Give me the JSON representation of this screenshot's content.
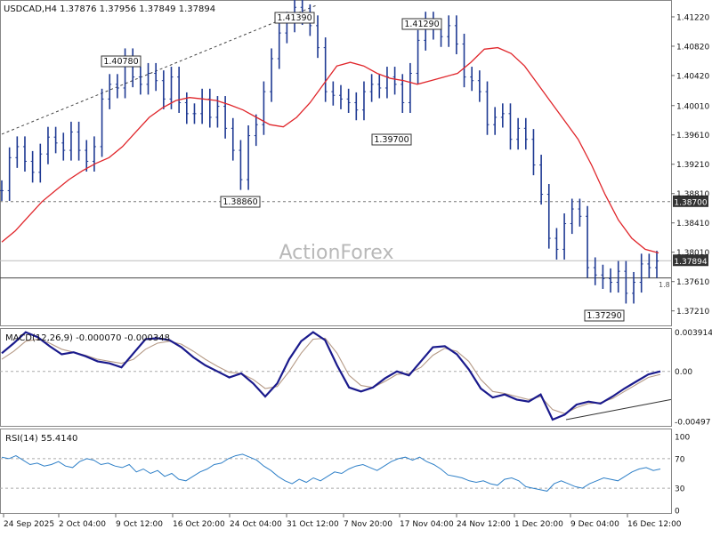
{
  "colors": {
    "background": "#ffffff",
    "bars": "#1f3a93",
    "sma": "#e0262b",
    "macd_main": "#1a1a8c",
    "macd_signal": "#b59a86",
    "rsi": "#2f80c8",
    "text": "#111111",
    "grid_dash": "#777777",
    "frame": "#888888",
    "watermark": "#b8b8b8",
    "price_tag_bg": "#333333",
    "price_tag_text": "#ffffff"
  },
  "main": {
    "header": "USDCAD,H4  1.37876 1.37956 1.37849 1.37894",
    "watermark": "ActionForex",
    "current_price": "1.37894",
    "resistance_label": "1.38700",
    "small_label": "1.8"
  },
  "macd": {
    "header": "MACD(12,26,9) -0.000070 -0.000348"
  },
  "rsi": {
    "header": "RSI(14) 55.4140"
  },
  "chart_data": [
    {
      "type": "line",
      "panel": "price",
      "title": "USDCAD,H4 1.37876 1.37956 1.37849 1.37894",
      "ylim": [
        1.37,
        1.4145
      ],
      "y_ticks": [
        "1.41220",
        "1.40820",
        "1.40420",
        "1.40010",
        "1.39610",
        "1.39210",
        "1.38810",
        "1.38410",
        "1.38010",
        "1.37610",
        "1.37210"
      ],
      "x_ticks": [
        "24 Sep 2025",
        "2 Oct 04:00",
        "9 Oct 12:00",
        "16 Oct 20:00",
        "24 Oct 04:00",
        "31 Oct 12:00",
        "7 Nov 20:00",
        "17 Nov 04:00",
        "24 Nov 12:00",
        "1 Dec 20:00",
        "9 Dec 04:00",
        "16 Dec 12:00"
      ],
      "series": [
        {
          "values": [
            1.3885,
            1.393,
            1.3945,
            1.3925,
            1.391,
            1.3935,
            1.3958,
            1.395,
            1.394,
            1.3965,
            1.394,
            1.3925,
            1.3945,
            1.401,
            1.403,
            1.4025,
            1.4065,
            1.404,
            1.403,
            1.4045,
            1.4035,
            1.401,
            1.404,
            1.4005,
            1.399,
            1.399,
            1.401,
            1.3985,
            1.4,
            1.397,
            1.394,
            1.39,
            1.396,
            1.3975,
            1.402,
            1.4065,
            1.41,
            1.4115,
            1.4135,
            1.4125,
            1.411,
            1.408,
            1.402,
            1.4015,
            1.401,
            1.4005,
            1.3995,
            1.402,
            1.403,
            1.4025,
            1.404,
            1.403,
            1.4005,
            1.4045,
            1.409,
            1.4115,
            1.4105,
            1.4095,
            1.411,
            1.4085,
            1.404,
            1.4035,
            1.402,
            1.3975,
            1.3985,
            1.399,
            1.3955,
            1.397,
            1.3955,
            1.392,
            1.388,
            1.382,
            1.3805,
            1.384,
            1.386,
            1.385,
            1.378,
            1.377,
            1.3765,
            1.376,
            1.3775,
            1.3745,
            1.376,
            1.3785,
            1.378,
            1.3789
          ]
        },
        {
          "name": "MA",
          "values": [
            1.3815,
            1.383,
            1.385,
            1.387,
            1.3885,
            1.39,
            1.3912,
            1.3922,
            1.393,
            1.3945,
            1.3965,
            1.3985,
            1.3998,
            1.4008,
            1.4012,
            1.401,
            1.4008,
            1.4002,
            1.3995,
            1.3985,
            1.3975,
            1.3972,
            1.3985,
            1.4005,
            1.403,
            1.4055,
            1.406,
            1.4055,
            1.4045,
            1.4038,
            1.4035,
            1.403,
            1.4035,
            1.404,
            1.4045,
            1.406,
            1.4078,
            1.408,
            1.4072,
            1.4055,
            1.403,
            1.4005,
            1.398,
            1.3955,
            1.392,
            1.388,
            1.3845,
            1.382,
            1.3805,
            1.38
          ]
        },
        {
          "name": "trendline",
          "values": [
            1.3962,
            1.4138
          ]
        }
      ],
      "annotations": [
        {
          "label": "1.41390",
          "value": 1.4139
        },
        {
          "label": "1.40780",
          "value": 1.4078
        },
        {
          "label": "1.41290",
          "value": 1.4129
        },
        {
          "label": "1.39700",
          "value": 1.397
        },
        {
          "label": "1.38860",
          "value": 1.3886
        },
        {
          "label": "1.37290",
          "value": 1.3729
        },
        {
          "label": "1.38700",
          "value": 1.387
        },
        {
          "label": "1.37894",
          "value": 1.37894
        }
      ]
    },
    {
      "type": "line",
      "panel": "macd",
      "title": "MACD(12,26,9) -0.000070 -0.000348",
      "ylim": [
        -0.00515,
        0.00395
      ],
      "y_ticks": [
        "0.003914",
        "0.00",
        "-0.00497"
      ],
      "series": [
        {
          "name": "MACD main",
          "values": [
            0.0018,
            0.0028,
            0.0039,
            0.0034,
            0.0025,
            0.0017,
            0.0019,
            0.0015,
            0.001,
            0.0008,
            0.0004,
            0.0018,
            0.0032,
            0.0033,
            0.0031,
            0.0024,
            0.0014,
            0.0006,
            0.0,
            -0.0006,
            -0.0002,
            -0.0012,
            -0.0025,
            -0.0012,
            0.0012,
            0.003,
            0.0039,
            0.0031,
            0.0006,
            -0.0016,
            -0.002,
            -0.0016,
            -0.0007,
            0.0,
            -0.0004,
            0.001,
            0.0024,
            0.0025,
            0.0017,
            0.0002,
            -0.0017,
            -0.0026,
            -0.0023,
            -0.0028,
            -0.003,
            -0.0023,
            -0.0048,
            -0.0043,
            -0.0033,
            -0.003,
            -0.0032,
            -0.0025,
            -0.0017,
            -0.001,
            -0.0003,
            0.0
          ]
        },
        {
          "name": "MACD signal",
          "values": [
            0.0012,
            0.002,
            0.003,
            0.0032,
            0.0028,
            0.0022,
            0.0019,
            0.0016,
            0.0012,
            0.001,
            0.0008,
            0.0012,
            0.0022,
            0.0028,
            0.003,
            0.0027,
            0.002,
            0.0012,
            0.0005,
            -0.0001,
            -0.0002,
            -0.0008,
            -0.0017,
            -0.0015,
            0.0,
            0.0018,
            0.0032,
            0.0033,
            0.0018,
            -0.0004,
            -0.0014,
            -0.0016,
            -0.001,
            -0.0003,
            -0.0002,
            0.0004,
            0.0016,
            0.0023,
            0.002,
            0.001,
            -0.0008,
            -0.002,
            -0.0022,
            -0.0025,
            -0.0028,
            -0.0025,
            -0.0038,
            -0.0042,
            -0.0036,
            -0.0032,
            -0.0031,
            -0.0027,
            -0.002,
            -0.0013,
            -0.0006,
            -0.0003
          ]
        },
        {
          "name": "trendline",
          "values": [
            -0.0048,
            -0.0028
          ]
        }
      ]
    },
    {
      "type": "line",
      "panel": "rsi",
      "title": "RSI(14) 55.4140",
      "ylim": [
        0,
        100
      ],
      "y_ticks": [
        "100",
        "70",
        "30",
        "0"
      ],
      "series": [
        {
          "name": "RSI",
          "values": [
            72,
            70,
            74,
            68,
            62,
            64,
            60,
            62,
            66,
            60,
            58,
            66,
            70,
            68,
            62,
            64,
            60,
            58,
            62,
            52,
            56,
            50,
            54,
            46,
            50,
            42,
            40,
            46,
            52,
            56,
            62,
            64,
            70,
            74,
            76,
            72,
            68,
            60,
            54,
            46,
            40,
            36,
            42,
            38,
            44,
            40,
            46,
            52,
            50,
            56,
            60,
            62,
            58,
            54,
            60,
            66,
            70,
            72,
            68,
            72,
            66,
            62,
            56,
            48,
            46,
            44,
            40,
            38,
            40,
            36,
            34,
            42,
            44,
            40,
            32,
            30,
            28,
            26,
            36,
            40,
            36,
            32,
            30,
            36,
            40,
            44,
            42,
            40,
            46,
            52,
            56,
            58,
            54,
            56
          ]
        }
      ]
    }
  ]
}
